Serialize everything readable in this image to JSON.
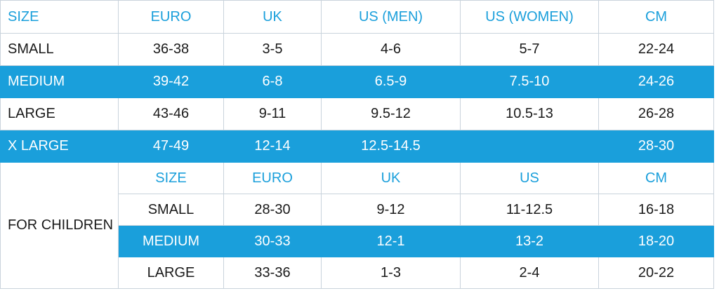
{
  "adult_table": {
    "header": [
      "SIZE",
      "EURO",
      "UK",
      "US (MEN)",
      "US (WOMEN)",
      "CM"
    ],
    "rows": [
      [
        "SMALL",
        "36-38",
        "3-5",
        "4-6",
        "5-7",
        "22-24"
      ],
      [
        "MEDIUM",
        "39-42",
        "6-8",
        "6.5-9",
        "7.5-10",
        "24-26"
      ],
      [
        "LARGE",
        "43-46",
        "9-11",
        "9.5-12",
        "10.5-13",
        "26-28"
      ],
      [
        "X LARGE",
        "47-49",
        "12-14",
        "12.5-14.5",
        null,
        "28-30"
      ]
    ]
  },
  "children_table": {
    "label": "FOR CHILDREN",
    "header": [
      "SIZE",
      "EURO",
      "UK",
      "US",
      "CM"
    ],
    "rows": [
      [
        "SMALL",
        "28-30",
        "9-12",
        "11-12.5",
        "16-18"
      ],
      [
        "MEDIUM",
        "30-33",
        "12-1",
        "13-2",
        "18-20"
      ],
      [
        "LARGE",
        "33-36",
        "1-3",
        "2-4",
        "20-22"
      ]
    ]
  }
}
